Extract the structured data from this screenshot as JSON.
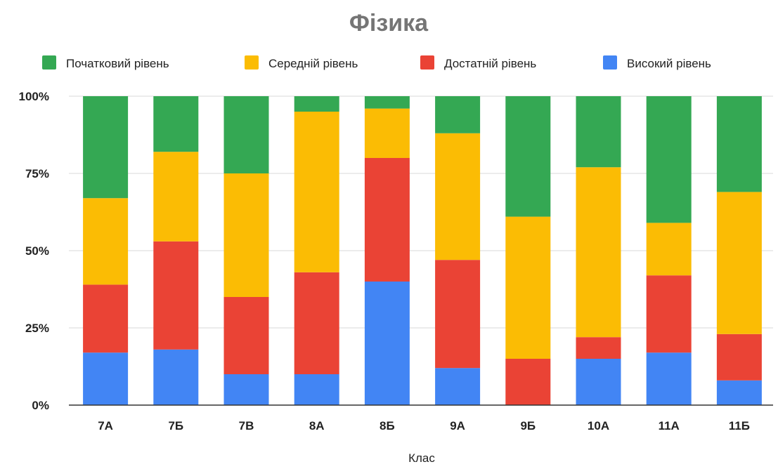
{
  "chart_data": {
    "type": "bar",
    "stacked": true,
    "normalized": true,
    "title": "Фізика",
    "xlabel": "Клас",
    "ylabel": "",
    "categories": [
      "7А",
      "7Б",
      "7В",
      "8А",
      "8Б",
      "9А",
      "9Б",
      "10А",
      "11А",
      "11Б"
    ],
    "yticks": [
      "0%",
      "25%",
      "50%",
      "75%",
      "100%"
    ],
    "ylim": [
      0,
      100
    ],
    "legend_position": "top",
    "grid": true,
    "series": [
      {
        "name": "Високий рівень",
        "color": "#4285f4",
        "values": [
          17,
          18,
          10,
          10,
          40,
          12,
          0,
          15,
          17,
          8
        ]
      },
      {
        "name": "Достатній рівень",
        "color": "#ea4335",
        "values": [
          22,
          35,
          25,
          33,
          40,
          35,
          15,
          7,
          25,
          15
        ]
      },
      {
        "name": "Середній рівень",
        "color": "#fbbc04",
        "values": [
          28,
          29,
          40,
          52,
          16,
          41,
          46,
          55,
          17,
          46
        ]
      },
      {
        "name": "Початковий рівень",
        "color": "#34a853",
        "values": [
          33,
          18,
          25,
          5,
          4,
          12,
          39,
          23,
          41,
          31
        ]
      }
    ],
    "legend_order": [
      "Початковий рівень",
      "Середній рівень",
      "Достатній рівень",
      "Високий рівень"
    ]
  }
}
